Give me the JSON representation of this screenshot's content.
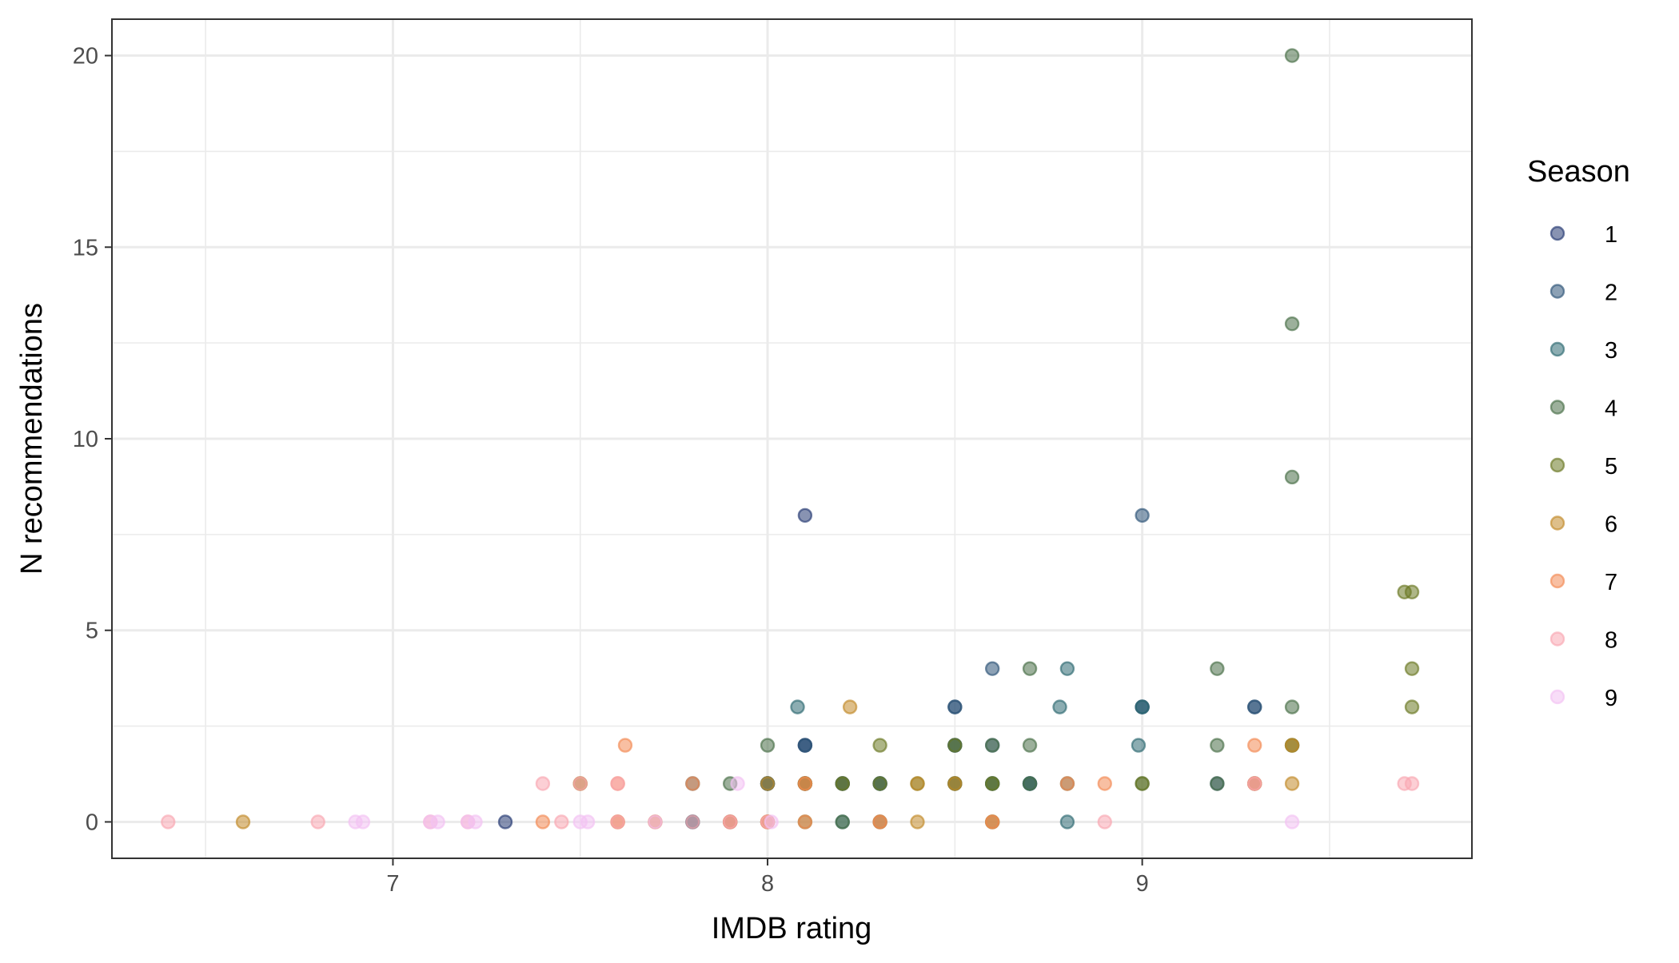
{
  "chart_data": {
    "type": "scatter",
    "title": "",
    "xlabel": "IMDB rating",
    "ylabel": "N recommendations",
    "xlim": [
      6.25,
      9.88
    ],
    "ylim": [
      -0.95,
      20.95
    ],
    "x_ticks": [
      7,
      8,
      9
    ],
    "x_tick_labels": [
      "7",
      "8",
      "9"
    ],
    "x_minor": [
      6.5,
      7.5,
      8.5,
      9.5
    ],
    "y_ticks": [
      0,
      5,
      10,
      15,
      20
    ],
    "y_tick_labels": [
      "0",
      "5",
      "10",
      "15",
      "20"
    ],
    "y_minor": [
      2.5,
      7.5,
      12.5,
      17.5
    ],
    "grid": true,
    "point_alpha": 0.55,
    "legend": {
      "title": "Season",
      "position": "right"
    },
    "series": [
      {
        "name": "1",
        "color": "#273a73",
        "points": [
          [
            7.3,
            0
          ],
          [
            8.1,
            8
          ],
          [
            8.1,
            1
          ],
          [
            8.1,
            2
          ],
          [
            8.2,
            1
          ],
          [
            8.3,
            1
          ],
          [
            8.0,
            1
          ],
          [
            7.9,
            0
          ]
        ]
      },
      {
        "name": "2",
        "color": "#2e5478",
        "points": [
          [
            8.6,
            4
          ],
          [
            8.5,
            3
          ],
          [
            8.5,
            3
          ],
          [
            8.1,
            2
          ],
          [
            8.1,
            2
          ],
          [
            8.5,
            2
          ],
          [
            8.5,
            2
          ],
          [
            8.6,
            2
          ],
          [
            9.0,
            8
          ],
          [
            9.0,
            3
          ],
          [
            9.0,
            3
          ],
          [
            9.3,
            3
          ],
          [
            9.3,
            3
          ],
          [
            8.7,
            1
          ],
          [
            8.7,
            1
          ],
          [
            9.3,
            1
          ],
          [
            9.2,
            1
          ],
          [
            8.6,
            1
          ],
          [
            8.2,
            1
          ],
          [
            8.1,
            1
          ],
          [
            8.3,
            1
          ],
          [
            7.8,
            0
          ],
          [
            8.0,
            1
          ],
          [
            8.5,
            1
          ]
        ]
      },
      {
        "name": "3",
        "color": "#2e6a72",
        "points": [
          [
            8.8,
            4
          ],
          [
            8.08,
            3
          ],
          [
            8.78,
            3
          ],
          [
            8.99,
            2
          ],
          [
            9.0,
            3
          ],
          [
            8.0,
            1
          ],
          [
            8.8,
            0
          ],
          [
            8.3,
            1
          ],
          [
            8.6,
            1
          ],
          [
            8.5,
            2
          ],
          [
            8.2,
            0
          ],
          [
            8.7,
            1
          ],
          [
            8.0,
            1
          ],
          [
            8.3,
            0
          ],
          [
            7.8,
            0
          ],
          [
            8.1,
            1
          ],
          [
            8.5,
            1
          ],
          [
            7.8,
            1
          ]
        ]
      },
      {
        "name": "4",
        "color": "#4a7048",
        "points": [
          [
            9.4,
            20
          ],
          [
            9.4,
            13
          ],
          [
            9.4,
            9
          ],
          [
            8.7,
            4
          ],
          [
            9.2,
            4
          ],
          [
            9.4,
            3
          ],
          [
            8.0,
            2
          ],
          [
            8.7,
            2
          ],
          [
            9.2,
            2
          ],
          [
            9.4,
            2
          ],
          [
            8.6,
            2
          ],
          [
            7.9,
            1
          ],
          [
            8.2,
            1
          ],
          [
            8.6,
            1
          ],
          [
            8.7,
            1
          ],
          [
            9.0,
            1
          ],
          [
            9.2,
            1
          ],
          [
            8.2,
            0
          ],
          [
            8.8,
            1
          ],
          [
            8.6,
            0
          ]
        ]
      },
      {
        "name": "5",
        "color": "#6b7a25",
        "points": [
          [
            9.7,
            6
          ],
          [
            9.72,
            6
          ],
          [
            9.72,
            4
          ],
          [
            9.72,
            3
          ],
          [
            8.3,
            2
          ],
          [
            9.4,
            2
          ],
          [
            8.5,
            2
          ],
          [
            8.5,
            1
          ],
          [
            7.5,
            1
          ],
          [
            9.0,
            1
          ],
          [
            8.1,
            1
          ],
          [
            8.3,
            1
          ],
          [
            8.6,
            1
          ],
          [
            8.2,
            1
          ],
          [
            8.0,
            0
          ],
          [
            8.1,
            0
          ],
          [
            8.4,
            1
          ]
        ]
      },
      {
        "name": "6",
        "color": "#c28a2a",
        "points": [
          [
            6.6,
            0
          ],
          [
            8.22,
            3
          ],
          [
            7.5,
            1
          ],
          [
            7.6,
            0
          ],
          [
            7.7,
            0
          ],
          [
            8.0,
            1
          ],
          [
            8.1,
            1
          ],
          [
            8.3,
            0
          ],
          [
            8.4,
            0
          ],
          [
            8.5,
            1
          ],
          [
            9.4,
            2
          ],
          [
            9.4,
            1
          ],
          [
            9.3,
            1
          ],
          [
            8.6,
            0
          ],
          [
            8.0,
            0
          ],
          [
            8.4,
            1
          ],
          [
            7.9,
            0
          ]
        ]
      },
      {
        "name": "7",
        "color": "#f28b55",
        "points": [
          [
            7.62,
            2
          ],
          [
            9.3,
            2
          ],
          [
            7.6,
            1
          ],
          [
            7.8,
            1
          ],
          [
            8.1,
            0
          ],
          [
            8.3,
            0
          ],
          [
            8.9,
            1
          ],
          [
            9.3,
            1
          ],
          [
            7.4,
            0
          ],
          [
            7.7,
            0
          ],
          [
            8.0,
            0
          ],
          [
            8.6,
            0
          ],
          [
            7.9,
            0
          ],
          [
            8.8,
            1
          ],
          [
            8.1,
            1
          ],
          [
            7.6,
            0
          ]
        ]
      },
      {
        "name": "8",
        "color": "#f9a8b2",
        "points": [
          [
            6.4,
            0
          ],
          [
            6.8,
            0
          ],
          [
            7.4,
            1
          ],
          [
            7.5,
            1
          ],
          [
            7.6,
            1
          ],
          [
            9.7,
            1
          ],
          [
            9.72,
            1
          ],
          [
            7.45,
            0
          ],
          [
            7.6,
            0
          ],
          [
            7.8,
            0
          ],
          [
            7.9,
            0
          ],
          [
            8.0,
            0
          ],
          [
            8.9,
            0
          ],
          [
            9.3,
            1
          ],
          [
            7.1,
            0
          ],
          [
            7.2,
            0
          ]
        ]
      },
      {
        "name": "9",
        "color": "#f3c1f2",
        "points": [
          [
            6.9,
            0
          ],
          [
            6.92,
            0
          ],
          [
            7.1,
            0
          ],
          [
            7.12,
            0
          ],
          [
            7.2,
            0
          ],
          [
            7.22,
            0
          ],
          [
            7.5,
            0
          ],
          [
            7.52,
            0
          ],
          [
            7.7,
            0
          ],
          [
            7.92,
            1
          ],
          [
            9.4,
            0
          ],
          [
            8.01,
            0
          ]
        ]
      }
    ]
  }
}
